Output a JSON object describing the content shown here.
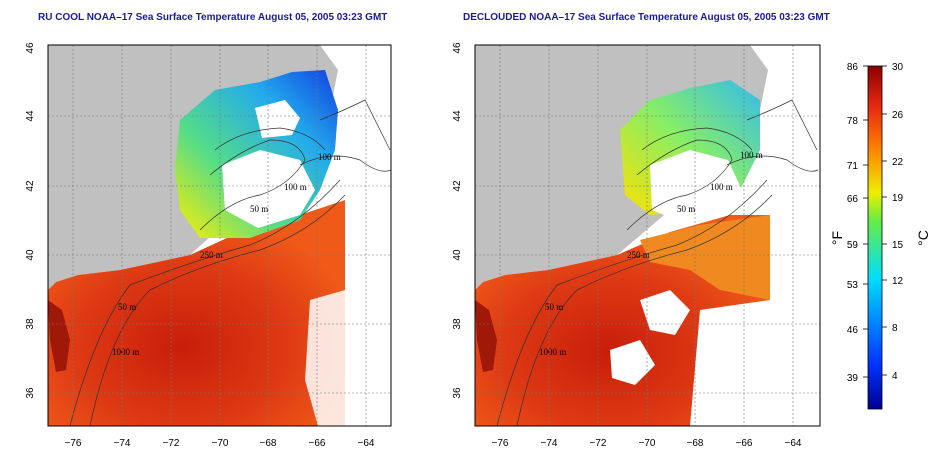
{
  "panels": [
    {
      "id": "left",
      "title": "RU COOL NOAA–17 Sea Surface Temperature August 05, 2005 03:23 GMT",
      "contour_labels": [
        "100 m",
        "100 m",
        "50 m",
        "250 m",
        "50 m",
        "1000 m"
      ]
    },
    {
      "id": "right",
      "title": "DECLOUDED NOAA–17 Sea Surface Temperature August 05, 2005 03:23 GMT",
      "contour_labels": [
        "100 m",
        "100 m",
        "50 m",
        "250 m",
        "50 m",
        "1000 m"
      ]
    }
  ],
  "axes": {
    "x_ticks": [
      "−76",
      "−74",
      "−72",
      "−70",
      "−68",
      "−66",
      "−64"
    ],
    "y_ticks": [
      "36",
      "38",
      "40",
      "42",
      "44",
      "46"
    ],
    "lon_range": [
      -77,
      -63
    ],
    "lat_range": [
      35,
      46
    ],
    "grid": "dotted"
  },
  "colorbar": {
    "range_c": [
      0,
      30
    ],
    "fahrenheit_labels": [
      "86",
      "78",
      "71",
      "66",
      "59",
      "53",
      "46",
      "39"
    ],
    "celsius_labels": [
      "30",
      "26",
      "22",
      "19",
      "15",
      "12",
      "8",
      "4"
    ],
    "fahrenheit_unit": "°F",
    "celsius_unit": "°C"
  },
  "colors": {
    "land": "#c0c0c0",
    "cloud": "#ffffff",
    "title": "#1a1aa0",
    "warm": "#d42a10",
    "cool": "#1a4ae0"
  }
}
